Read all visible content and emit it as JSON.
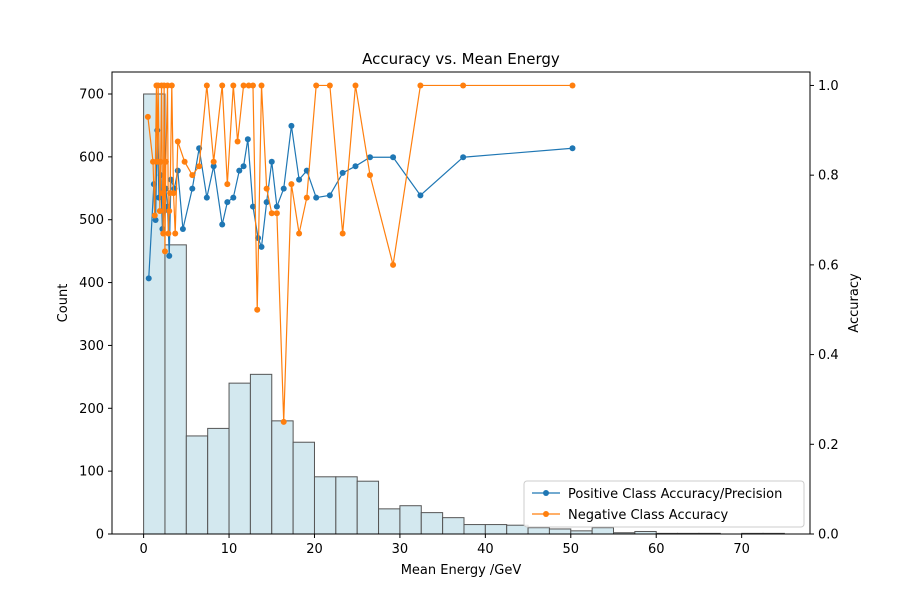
{
  "chart_data": {
    "type": "histogram-with-lines",
    "title": "Accuracy vs. Mean Energy",
    "xlabel": "Mean Energy /GeV",
    "ylabel_left": "Count",
    "ylabel_right": "Accuracy",
    "xlim": [
      -3.7,
      78
    ],
    "ylim_left": [
      0,
      735
    ],
    "ylim_right": [
      0,
      1.03
    ],
    "x_ticks": [
      0,
      10,
      20,
      30,
      40,
      50,
      60,
      70
    ],
    "y_left_ticks": [
      0,
      100,
      200,
      300,
      400,
      500,
      600,
      700
    ],
    "y_right_ticks": [
      0.0,
      0.2,
      0.4,
      0.6,
      0.8,
      1.0
    ],
    "grid": false,
    "legend_position": "lower right",
    "histogram": {
      "bin_width": 2.5,
      "bins": [
        {
          "x": 0.0,
          "count": 700
        },
        {
          "x": 2.5,
          "count": 460
        },
        {
          "x": 5.0,
          "count": 156
        },
        {
          "x": 7.5,
          "count": 168
        },
        {
          "x": 10.0,
          "count": 240
        },
        {
          "x": 12.5,
          "count": 254
        },
        {
          "x": 15.0,
          "count": 180
        },
        {
          "x": 17.5,
          "count": 146
        },
        {
          "x": 20.0,
          "count": 91
        },
        {
          "x": 22.5,
          "count": 91
        },
        {
          "x": 25.0,
          "count": 84
        },
        {
          "x": 27.5,
          "count": 40
        },
        {
          "x": 30.0,
          "count": 45
        },
        {
          "x": 32.5,
          "count": 34
        },
        {
          "x": 35.0,
          "count": 26
        },
        {
          "x": 37.5,
          "count": 15
        },
        {
          "x": 40.0,
          "count": 15
        },
        {
          "x": 42.5,
          "count": 14
        },
        {
          "x": 45.0,
          "count": 10
        },
        {
          "x": 47.5,
          "count": 8
        },
        {
          "x": 50.0,
          "count": 5
        },
        {
          "x": 52.5,
          "count": 10
        },
        {
          "x": 55.0,
          "count": 2
        },
        {
          "x": 57.5,
          "count": 4
        },
        {
          "x": 60.0,
          "count": 1
        },
        {
          "x": 62.5,
          "count": 1
        },
        {
          "x": 65.0,
          "count": 1
        },
        {
          "x": 67.5,
          "count": 0
        },
        {
          "x": 70.0,
          "count": 1
        },
        {
          "x": 72.5,
          "count": 1
        }
      ],
      "fill": "#d3e8ef",
      "edge": "#555555"
    },
    "series": [
      {
        "name": "Positive Class Accuracy/Precision",
        "color": "#1f77b4",
        "points": [
          [
            0.6,
            0.57
          ],
          [
            1.2,
            0.78
          ],
          [
            1.4,
            0.7
          ],
          [
            1.6,
            0.9
          ],
          [
            1.8,
            0.75
          ],
          [
            2.0,
            0.8
          ],
          [
            2.2,
            0.68
          ],
          [
            2.4,
            0.72
          ],
          [
            2.6,
            0.77
          ],
          [
            2.8,
            0.73
          ],
          [
            3.0,
            0.62
          ],
          [
            3.2,
            0.79
          ],
          [
            3.6,
            0.77
          ],
          [
            4.0,
            0.81
          ],
          [
            4.6,
            0.68
          ],
          [
            5.7,
            0.77
          ],
          [
            6.5,
            0.86
          ],
          [
            7.4,
            0.75
          ],
          [
            8.2,
            0.82
          ],
          [
            9.2,
            0.69
          ],
          [
            9.8,
            0.74
          ],
          [
            10.5,
            0.75
          ],
          [
            11.2,
            0.81
          ],
          [
            11.7,
            0.82
          ],
          [
            12.2,
            0.88
          ],
          [
            12.8,
            0.73
          ],
          [
            13.4,
            0.66
          ],
          [
            13.8,
            0.64
          ],
          [
            14.4,
            0.74
          ],
          [
            15.0,
            0.83
          ],
          [
            15.6,
            0.73
          ],
          [
            16.4,
            0.77
          ],
          [
            17.3,
            0.91
          ],
          [
            18.2,
            0.79
          ],
          [
            19.1,
            0.81
          ],
          [
            20.2,
            0.75
          ],
          [
            21.8,
            0.755
          ],
          [
            23.3,
            0.805
          ],
          [
            24.8,
            0.82
          ],
          [
            26.5,
            0.84
          ],
          [
            29.2,
            0.84
          ],
          [
            32.4,
            0.755
          ],
          [
            37.4,
            0.84
          ],
          [
            50.2,
            0.86
          ]
        ]
      },
      {
        "name": "Negative Class Accuracy",
        "color": "#ff7f0e",
        "points": [
          [
            0.5,
            0.93
          ],
          [
            1.1,
            0.83
          ],
          [
            1.3,
            0.71
          ],
          [
            1.5,
            1.0
          ],
          [
            1.6,
            0.83
          ],
          [
            1.7,
            1.0
          ],
          [
            1.9,
            0.72
          ],
          [
            2.0,
            0.83
          ],
          [
            2.1,
            1.0
          ],
          [
            2.2,
            0.76
          ],
          [
            2.3,
            0.67
          ],
          [
            2.4,
            1.0
          ],
          [
            2.5,
            0.63
          ],
          [
            2.6,
            0.83
          ],
          [
            2.8,
            1.0
          ],
          [
            2.9,
            0.67
          ],
          [
            3.0,
            0.72
          ],
          [
            3.1,
            0.76
          ],
          [
            3.3,
            1.0
          ],
          [
            3.5,
            0.76
          ],
          [
            3.7,
            0.67
          ],
          [
            4.0,
            0.875
          ],
          [
            4.8,
            0.83
          ],
          [
            5.7,
            0.8
          ],
          [
            6.5,
            0.82
          ],
          [
            7.4,
            1.0
          ],
          [
            8.2,
            0.83
          ],
          [
            9.2,
            1.0
          ],
          [
            9.8,
            0.78
          ],
          [
            10.5,
            1.0
          ],
          [
            11.0,
            0.875
          ],
          [
            11.7,
            1.0
          ],
          [
            12.3,
            1.0
          ],
          [
            12.8,
            1.0
          ],
          [
            13.3,
            0.5
          ],
          [
            13.8,
            1.0
          ],
          [
            14.4,
            0.77
          ],
          [
            15.0,
            0.715
          ],
          [
            15.6,
            0.715
          ],
          [
            16.4,
            0.25
          ],
          [
            17.3,
            0.78
          ],
          [
            18.2,
            0.67
          ],
          [
            19.1,
            0.75
          ],
          [
            20.2,
            1.0
          ],
          [
            21.8,
            1.0
          ],
          [
            23.3,
            0.67
          ],
          [
            24.8,
            1.0
          ],
          [
            26.5,
            0.8
          ],
          [
            29.2,
            0.6
          ],
          [
            32.4,
            1.0
          ],
          [
            37.4,
            1.0
          ],
          [
            50.2,
            1.0
          ]
        ]
      }
    ]
  }
}
